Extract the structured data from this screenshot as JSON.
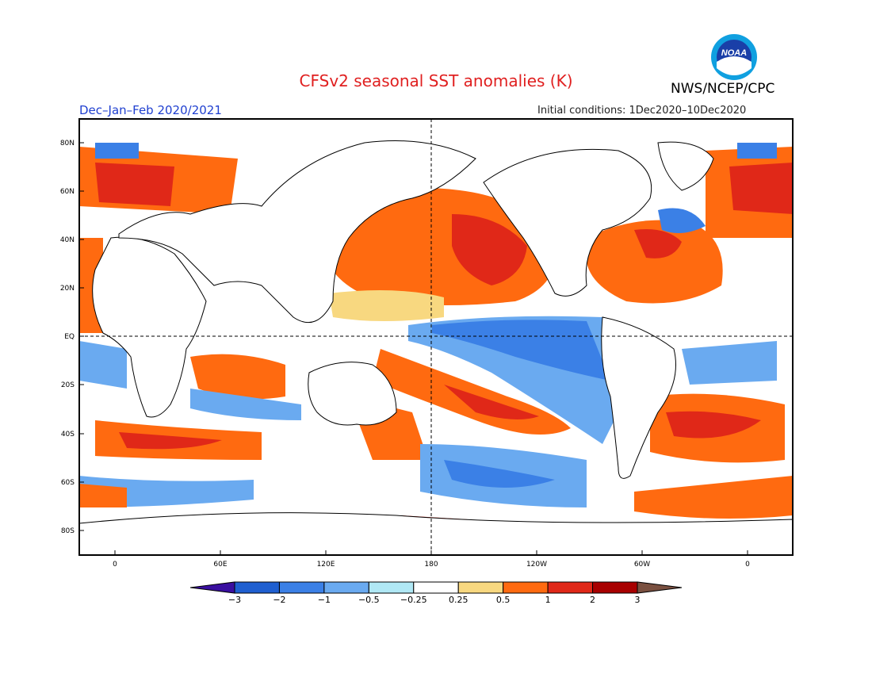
{
  "title": "CFSv2 seasonal SST anomalies (K)",
  "agency": "NWS/NCEP/CPC",
  "logo_text": "NOAA",
  "season": "Dec–Jan–Feb 2020/2021",
  "initial_conditions": "Initial conditions: 1Dec2020–10Dec2020",
  "lat_ticks": [
    "80N",
    "60N",
    "40N",
    "20N",
    "EQ",
    "20S",
    "40S",
    "60S",
    "80S"
  ],
  "lon_ticks": [
    "0",
    "60E",
    "120E",
    "180",
    "120W",
    "60W",
    "0"
  ],
  "colorbar": {
    "labels": [
      "−3",
      "−2",
      "−1",
      "−0.5",
      "−0.25",
      "0.25",
      "0.5",
      "1",
      "2",
      "3"
    ],
    "colors": [
      "#3a0fa0",
      "#1f5fd0",
      "#3b80e6",
      "#6aaaf0",
      "#b0e8f5",
      "#ffffff",
      "#f8d880",
      "#ff6a10",
      "#e02818",
      "#a80000",
      "#7a5040"
    ]
  },
  "colors": {
    "title": "#e02020",
    "season": "#2040d0",
    "land": "#ffffff",
    "coast": "#000000"
  }
}
